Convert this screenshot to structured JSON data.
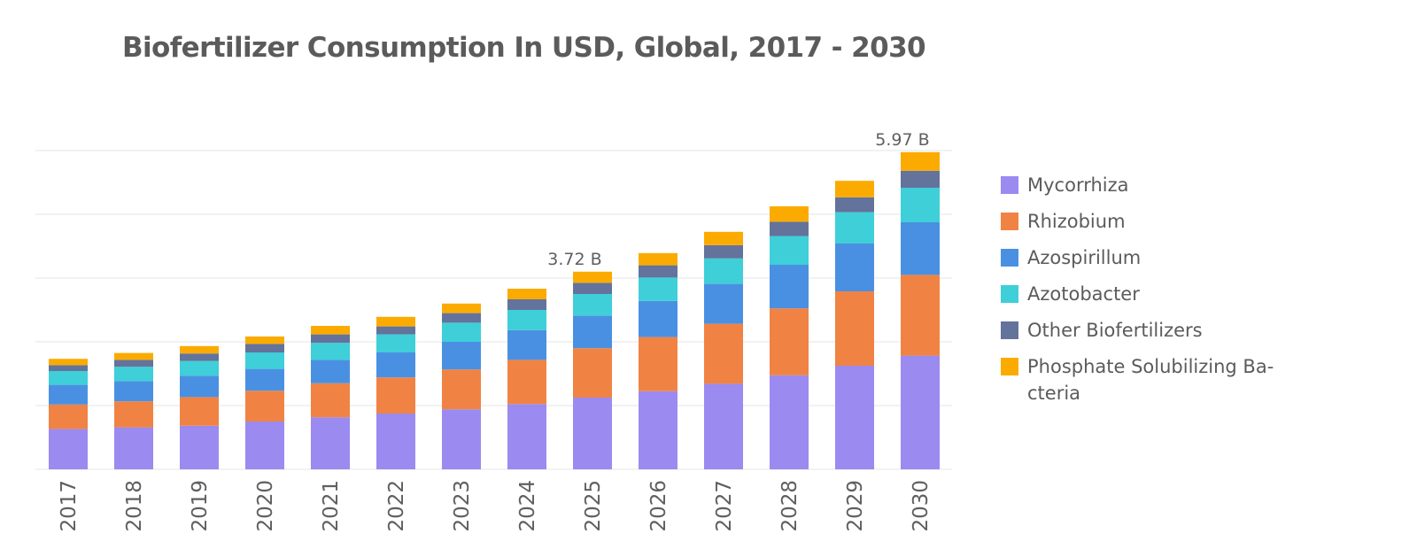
{
  "chart_data": {
    "type": "bar",
    "stacked": true,
    "title": "Biofertilizer Consumption In USD, Global, 2017 - 2030",
    "xlabel": "",
    "ylabel": "",
    "categories": [
      "2017",
      "2018",
      "2019",
      "2020",
      "2021",
      "2022",
      "2023",
      "2024",
      "2025",
      "2026",
      "2027",
      "2028",
      "2029",
      "2030"
    ],
    "ylim": [
      0,
      6.0
    ],
    "ygrid_step": 1.2,
    "grid": true,
    "legend_position": "right",
    "series": [
      {
        "name": "Mycorrhiza",
        "color": "#9b8aef",
        "values": [
          0.76,
          0.79,
          0.82,
          0.9,
          0.98,
          1.05,
          1.13,
          1.23,
          1.35,
          1.47,
          1.61,
          1.77,
          1.95,
          2.14
        ]
      },
      {
        "name": "Rhizobium",
        "color": "#f08344",
        "values": [
          0.46,
          0.49,
          0.54,
          0.58,
          0.64,
          0.68,
          0.75,
          0.83,
          0.93,
          1.02,
          1.13,
          1.26,
          1.4,
          1.52
        ]
      },
      {
        "name": "Azospirillum",
        "color": "#4a90e2",
        "values": [
          0.37,
          0.38,
          0.4,
          0.41,
          0.44,
          0.47,
          0.52,
          0.56,
          0.61,
          0.68,
          0.75,
          0.82,
          0.9,
          0.99
        ]
      },
      {
        "name": "Azotobacter",
        "color": "#3ecfd8",
        "values": [
          0.26,
          0.27,
          0.28,
          0.31,
          0.32,
          0.34,
          0.36,
          0.38,
          0.41,
          0.44,
          0.48,
          0.54,
          0.59,
          0.65
        ]
      },
      {
        "name": "Other Biofertilizers",
        "color": "#63739b",
        "values": [
          0.11,
          0.13,
          0.14,
          0.16,
          0.16,
          0.15,
          0.18,
          0.2,
          0.21,
          0.23,
          0.25,
          0.27,
          0.28,
          0.32
        ]
      },
      {
        "name": "Phosphate Solubilizing Bacteria",
        "color": "#fbab00",
        "values": [
          0.12,
          0.13,
          0.14,
          0.14,
          0.16,
          0.18,
          0.18,
          0.2,
          0.21,
          0.23,
          0.25,
          0.29,
          0.31,
          0.35
        ]
      }
    ],
    "annotations": [
      {
        "category": "2025",
        "text": "3.72 B"
      },
      {
        "category": "2030",
        "text": "5.97 B"
      }
    ]
  },
  "legend": {
    "items": [
      {
        "label": "Mycorrhiza",
        "color": "#9b8aef"
      },
      {
        "label": "Rhizobium",
        "color": "#f08344"
      },
      {
        "label": "Azospirillum",
        "color": "#4a90e2"
      },
      {
        "label": "Azotobacter",
        "color": "#3ecfd8"
      },
      {
        "label": "Other Biofertilizers",
        "color": "#63739b"
      },
      {
        "label": "Phosphate Solubilizing Ba-cteria",
        "color": "#fbab00"
      }
    ]
  }
}
